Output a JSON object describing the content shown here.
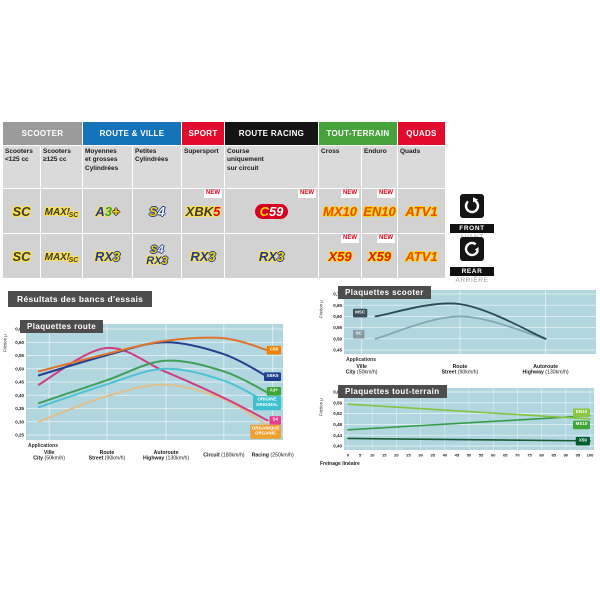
{
  "range_table": {
    "new_badge": "NEW",
    "categories": [
      {
        "label": "SCOOTER",
        "color": "#9b9b9b",
        "span": 2
      },
      {
        "label": "ROUTE & VILLE",
        "color": "#1573ba",
        "span": 2
      },
      {
        "label": "SPORT",
        "color": "#e30b2d",
        "span": 1
      },
      {
        "label": "ROUTE RACING",
        "color": "#141414",
        "span": 1
      },
      {
        "label": "TOUT-TERRAIN",
        "color": "#46a33c",
        "span": 2
      },
      {
        "label": "QUADS",
        "color": "#e30b2d",
        "span": 1
      }
    ],
    "sub_headers": [
      "Scooters\n<125 cc",
      "Scooters\n≥125 cc",
      "Moyennes\net grosses\nCylindrées",
      "Petites\nCylindrées",
      "Supersport",
      "Course\nuniquement\nsur circuit",
      "Cross",
      "Enduro",
      "Quads"
    ],
    "rows": {
      "front": [
        {
          "logos": [
            "SC"
          ],
          "new": false
        },
        {
          "logos": [
            "MAXISC"
          ],
          "new": false
        },
        {
          "logos": [
            "A3PLUS"
          ],
          "new": false
        },
        {
          "logos": [
            "S4"
          ],
          "new": false
        },
        {
          "logos": [
            "XBK5"
          ],
          "new": true
        },
        {
          "logos": [
            "C59"
          ],
          "new": true
        },
        {
          "logos": [
            "MX10"
          ],
          "new": true
        },
        {
          "logos": [
            "EN10"
          ],
          "new": true
        },
        {
          "logos": [
            "ATV1"
          ],
          "new": false
        }
      ],
      "rear": [
        {
          "logos": [
            "SC"
          ],
          "new": false
        },
        {
          "logos": [
            "MAXISC"
          ],
          "new": false
        },
        {
          "logos": [
            "RX3"
          ],
          "new": false
        },
        {
          "logos": [
            "S4",
            "RX3"
          ],
          "new": false
        },
        {
          "logos": [
            "RX3"
          ],
          "new": false
        },
        {
          "logos": [
            "RX3"
          ],
          "new": false
        },
        {
          "logos": [
            "X59"
          ],
          "new": true
        },
        {
          "logos": [
            "X59"
          ],
          "new": true
        },
        {
          "logos": [
            "ATV1"
          ],
          "new": false
        }
      ]
    },
    "position_badges": {
      "front": {
        "label": "FRONT",
        "sub": "AVANT"
      },
      "rear": {
        "label": "REAR",
        "sub": "ARRIÈRE"
      }
    }
  },
  "logos": {
    "SC": {
      "pill": false,
      "parts": [
        {
          "t": "SC",
          "cls": "p-dark"
        }
      ]
    },
    "MAXISC": {
      "pill": false,
      "parts": [
        {
          "t": "MAXI",
          "cls": "p-dark p-maxi"
        },
        {
          "t": "SC",
          "cls": "p-dark p-maxisc"
        }
      ]
    },
    "A3PLUS": {
      "pill": false,
      "parts": [
        {
          "t": "A",
          "cls": "p-navy"
        },
        {
          "t": "3",
          "cls": "p-green"
        },
        {
          "t": "+",
          "cls": "p-yellowplus"
        }
      ]
    },
    "S4": {
      "pill": false,
      "parts": [
        {
          "t": "S",
          "cls": "p-yellow-navy"
        },
        {
          "t": "4",
          "cls": "p-white-navy"
        }
      ]
    },
    "XBK5": {
      "pill": false,
      "parts": [
        {
          "t": "XBK",
          "cls": "p-dark"
        },
        {
          "t": "5",
          "cls": "p-red"
        }
      ]
    },
    "C59": {
      "pill": true,
      "parts": [
        {
          "t": "C",
          "cls": "p-c59c"
        },
        {
          "t": "59",
          "cls": "p-c59n"
        }
      ]
    },
    "RX3": {
      "pill": false,
      "parts": [
        {
          "t": "RX",
          "cls": "p-navy"
        },
        {
          "t": "3",
          "cls": "p-yellow-navy"
        }
      ]
    },
    "MX10": {
      "pill": false,
      "parts": [
        {
          "t": "MX10",
          "cls": "p-orange"
        }
      ]
    },
    "EN10": {
      "pill": false,
      "parts": [
        {
          "t": "EN10",
          "cls": "p-orange"
        }
      ]
    },
    "X59": {
      "pill": false,
      "parts": [
        {
          "t": "X59",
          "cls": "p-redyellow"
        }
      ]
    },
    "ATV1": {
      "pill": false,
      "parts": [
        {
          "t": "ATV1",
          "cls": "p-orange"
        }
      ]
    }
  },
  "results": {
    "title": "Résultats des bancs d'essais"
  },
  "chart_data": [
    {
      "id": "route",
      "type": "line",
      "title": "Plaquettes route",
      "ylabel": "Friction µ",
      "x_note": "Applications",
      "ylim": [
        0.25,
        0.65
      ],
      "yticks": [
        "0,25",
        "0,30",
        "0,35",
        "0,40",
        "0,45",
        "0,50",
        "0,55",
        "0,60",
        "0,65"
      ],
      "x_categories": [
        {
          "lines": [
            "Ville",
            "City"
          ],
          "speed": "(50km/h)"
        },
        {
          "lines": [
            "Route",
            "Street"
          ],
          "speed": "(90km/h)"
        },
        {
          "lines": [
            "Autoroute",
            "Highway"
          ],
          "speed": "(130km/h)"
        },
        {
          "lines": [
            "Circuit"
          ],
          "speed": "(180km/h)"
        },
        {
          "lines": [
            "Racing"
          ],
          "speed": "(250km/h)"
        }
      ],
      "series": [
        {
          "name": "C59",
          "color": "#df752b",
          "label_bg": "#ef8200",
          "label_lines": [
            "C59"
          ],
          "label_value": 0.57,
          "values": [
            0.49,
            0.555,
            0.605,
            0.615,
            0.57
          ]
        },
        {
          "name": "XBK5",
          "color": "#23408f",
          "label_bg": "#1f3d8f",
          "label_lines": [
            "XBK5"
          ],
          "label_value": 0.47,
          "values": [
            0.475,
            0.55,
            0.6,
            0.555,
            0.47
          ]
        },
        {
          "name": "A3+",
          "color": "#3fa05a",
          "label_bg": "#3fa535",
          "label_lines": [
            "A3+"
          ],
          "label_value": 0.415,
          "values": [
            0.37,
            0.455,
            0.53,
            0.49,
            0.41
          ]
        },
        {
          "name": "ORIGINE",
          "color": "#4cc3d4",
          "label_bg": "#3fc0d0",
          "label_lines": [
            "ORIGINE",
            "ORIGINAL"
          ],
          "label_value": 0.37,
          "values": [
            0.355,
            0.44,
            0.5,
            0.455,
            0.37
          ]
        },
        {
          "name": "S4",
          "color": "#cf3d7e",
          "label_bg": "#e8418c",
          "label_lines": [
            "S4"
          ],
          "label_value": 0.305,
          "values": [
            0.44,
            0.578,
            0.49,
            0.39,
            0.305
          ]
        },
        {
          "name": "ORGANIC",
          "color": "#dfc08a",
          "label_bg": "#f0a030",
          "label_lines": [
            "ORGANIQUE",
            "ORGANIC"
          ],
          "label_value": 0.262,
          "values": [
            0.3,
            0.395,
            0.44,
            0.385,
            0.285
          ]
        }
      ]
    },
    {
      "id": "scooter",
      "type": "line",
      "title": "Plaquettes scooter",
      "ylabel": "Friction µ",
      "x_note": "Applications",
      "ylim": [
        0.45,
        0.7
      ],
      "yticks": [
        "0,45",
        "0,50",
        "0,55",
        "0,60",
        "0,65",
        "0,70"
      ],
      "x_categories": [
        {
          "lines": [
            "Ville",
            "City"
          ],
          "speed": "(50km/h)"
        },
        {
          "lines": [
            "Route",
            "Street"
          ],
          "speed": "(90km/h)"
        },
        {
          "lines": [
            "Autoroute",
            "Highway"
          ],
          "speed": "(130km/h)"
        }
      ],
      "series": [
        {
          "name": "MSC",
          "color": "#2c4a56",
          "label_bg": "#3a4f58",
          "label_lines": [
            "MSC"
          ],
          "label_value": 0.615,
          "values": [
            0.6,
            0.655,
            0.5
          ]
        },
        {
          "name": "SC",
          "color": "#7fa8b0",
          "label_bg": "#8a9aa0",
          "label_lines": [
            "SC"
          ],
          "label_value": 0.52,
          "values": [
            0.5,
            0.6,
            0.5
          ]
        }
      ]
    },
    {
      "id": "offroad",
      "type": "line",
      "title": "Plaquettes tout-terrain",
      "ylabel": "Friction µ",
      "xlabel": "Freinage linéaire",
      "ylim": [
        0.4,
        0.6
      ],
      "yticks": [
        "0,40",
        "0,44",
        "0,48",
        "0,52",
        "0,56",
        "0,60"
      ],
      "xticks": [
        0,
        5,
        10,
        15,
        20,
        25,
        30,
        35,
        40,
        45,
        50,
        55,
        60,
        65,
        70,
        75,
        80,
        85,
        90,
        95,
        100
      ],
      "series": [
        {
          "name": "EN10",
          "color": "#86c440",
          "label_bg": "#8dc63f",
          "label_lines": [
            "EN10"
          ],
          "label_value": 0.523,
          "x": [
            0,
            100
          ],
          "values": [
            0.555,
            0.5
          ]
        },
        {
          "name": "MX10",
          "color": "#2f9e45",
          "label_bg": "#3fa535",
          "label_lines": [
            "MX10"
          ],
          "label_value": 0.478,
          "x": [
            0,
            100
          ],
          "values": [
            0.46,
            0.512
          ]
        },
        {
          "name": "X59",
          "color": "#175c35",
          "label_bg": "#005e2f",
          "label_lines": [
            "X59"
          ],
          "label_value": 0.418,
          "x": [
            0,
            100
          ],
          "values": [
            0.428,
            0.419
          ]
        }
      ]
    }
  ]
}
